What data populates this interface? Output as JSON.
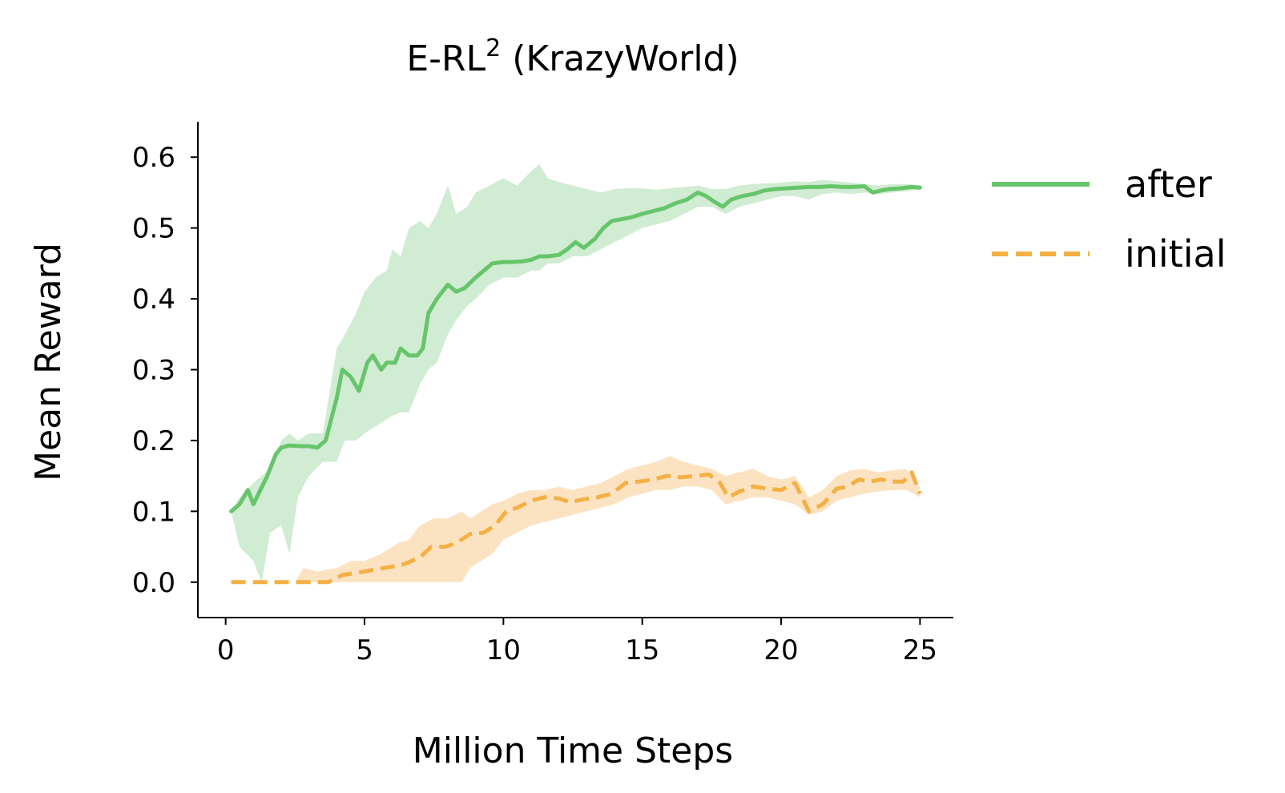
{
  "chart_data": {
    "type": "line",
    "title": "E-RL",
    "title_superscript": "2",
    "title_suffix": " (KrazyWorld)",
    "xlabel": "Million Time Steps",
    "ylabel": "Mean Reward",
    "xlim": [
      -1,
      26.2
    ],
    "ylim": [
      -0.05,
      0.65
    ],
    "xticks": [
      0,
      5,
      10,
      15,
      20,
      25
    ],
    "xtick_labels": [
      "0",
      "5",
      "10",
      "15",
      "20",
      "25"
    ],
    "yticks": [
      0.0,
      0.1,
      0.2,
      0.3,
      0.4,
      0.5,
      0.6
    ],
    "ytick_labels": [
      "0.0",
      "0.1",
      "0.2",
      "0.3",
      "0.4",
      "0.5",
      "0.6"
    ],
    "grid": false,
    "legend_position": "right",
    "series": [
      {
        "name": "after",
        "color": "#66c56a",
        "band_color": "#d0ecd2",
        "style": "solid",
        "points": [
          [
            0.2,
            0.1
          ],
          [
            0.5,
            0.11
          ],
          [
            0.8,
            0.13
          ],
          [
            1.0,
            0.11
          ],
          [
            1.5,
            0.15
          ],
          [
            1.8,
            0.18
          ],
          [
            2.0,
            0.19
          ],
          [
            2.3,
            0.193
          ],
          [
            2.7,
            0.192
          ],
          [
            3.0,
            0.192
          ],
          [
            3.3,
            0.19
          ],
          [
            3.6,
            0.2
          ],
          [
            4.0,
            0.26
          ],
          [
            4.2,
            0.3
          ],
          [
            4.5,
            0.29
          ],
          [
            4.8,
            0.27
          ],
          [
            5.1,
            0.31
          ],
          [
            5.3,
            0.32
          ],
          [
            5.6,
            0.3
          ],
          [
            5.8,
            0.31
          ],
          [
            6.1,
            0.31
          ],
          [
            6.3,
            0.33
          ],
          [
            6.6,
            0.32
          ],
          [
            6.9,
            0.32
          ],
          [
            7.1,
            0.33
          ],
          [
            7.3,
            0.38
          ],
          [
            7.6,
            0.4
          ],
          [
            7.8,
            0.41
          ],
          [
            8.0,
            0.42
          ],
          [
            8.3,
            0.41
          ],
          [
            8.6,
            0.415
          ],
          [
            9.0,
            0.43
          ],
          [
            9.3,
            0.44
          ],
          [
            9.6,
            0.45
          ],
          [
            10.0,
            0.452
          ],
          [
            10.3,
            0.452
          ],
          [
            10.7,
            0.453
          ],
          [
            11.0,
            0.455
          ],
          [
            11.3,
            0.46
          ],
          [
            11.6,
            0.46
          ],
          [
            12.0,
            0.462
          ],
          [
            12.3,
            0.47
          ],
          [
            12.6,
            0.48
          ],
          [
            12.9,
            0.472
          ],
          [
            13.3,
            0.485
          ],
          [
            13.6,
            0.5
          ],
          [
            13.9,
            0.51
          ],
          [
            14.2,
            0.512
          ],
          [
            14.6,
            0.515
          ],
          [
            15.0,
            0.52
          ],
          [
            15.4,
            0.524
          ],
          [
            15.8,
            0.528
          ],
          [
            16.2,
            0.535
          ],
          [
            16.6,
            0.54
          ],
          [
            17.0,
            0.55
          ],
          [
            17.3,
            0.545
          ],
          [
            17.6,
            0.537
          ],
          [
            17.9,
            0.53
          ],
          [
            18.2,
            0.54
          ],
          [
            18.6,
            0.545
          ],
          [
            19.0,
            0.548
          ],
          [
            19.4,
            0.553
          ],
          [
            19.8,
            0.555
          ],
          [
            20.2,
            0.556
          ],
          [
            20.6,
            0.557
          ],
          [
            21.0,
            0.558
          ],
          [
            21.4,
            0.558
          ],
          [
            21.8,
            0.559
          ],
          [
            22.2,
            0.558
          ],
          [
            22.6,
            0.558
          ],
          [
            23.0,
            0.559
          ],
          [
            23.3,
            0.55
          ],
          [
            23.6,
            0.553
          ],
          [
            23.9,
            0.555
          ],
          [
            24.3,
            0.556
          ],
          [
            24.7,
            0.558
          ],
          [
            25.0,
            0.557
          ]
        ],
        "band": [
          [
            0.2,
            0.1,
            0.1
          ],
          [
            0.5,
            0.05,
            0.12
          ],
          [
            1.0,
            0.03,
            0.14
          ],
          [
            1.3,
            0.0,
            0.15
          ],
          [
            1.6,
            0.07,
            0.16
          ],
          [
            2.0,
            0.08,
            0.2
          ],
          [
            2.3,
            0.04,
            0.21
          ],
          [
            2.6,
            0.12,
            0.2
          ],
          [
            3.0,
            0.15,
            0.21
          ],
          [
            3.5,
            0.17,
            0.21
          ],
          [
            4.0,
            0.17,
            0.33
          ],
          [
            4.3,
            0.2,
            0.35
          ],
          [
            4.7,
            0.2,
            0.38
          ],
          [
            5.0,
            0.21,
            0.41
          ],
          [
            5.4,
            0.22,
            0.43
          ],
          [
            5.8,
            0.23,
            0.44
          ],
          [
            6.0,
            0.235,
            0.47
          ],
          [
            6.3,
            0.24,
            0.46
          ],
          [
            6.6,
            0.24,
            0.5
          ],
          [
            7.0,
            0.28,
            0.51
          ],
          [
            7.3,
            0.3,
            0.5
          ],
          [
            7.6,
            0.31,
            0.52
          ],
          [
            8.0,
            0.35,
            0.56
          ],
          [
            8.3,
            0.37,
            0.52
          ],
          [
            8.7,
            0.39,
            0.53
          ],
          [
            9.0,
            0.4,
            0.55
          ],
          [
            9.5,
            0.42,
            0.56
          ],
          [
            10.0,
            0.43,
            0.57
          ],
          [
            10.5,
            0.43,
            0.56
          ],
          [
            11.0,
            0.44,
            0.58
          ],
          [
            11.3,
            0.44,
            0.59
          ],
          [
            11.6,
            0.45,
            0.57
          ],
          [
            12.0,
            0.45,
            0.565
          ],
          [
            12.5,
            0.46,
            0.56
          ],
          [
            13.0,
            0.46,
            0.555
          ],
          [
            13.5,
            0.47,
            0.55
          ],
          [
            14.0,
            0.48,
            0.555
          ],
          [
            14.5,
            0.49,
            0.556
          ],
          [
            15.0,
            0.5,
            0.556
          ],
          [
            15.5,
            0.505,
            0.554
          ],
          [
            16.0,
            0.51,
            0.556
          ],
          [
            16.5,
            0.52,
            0.558
          ],
          [
            17.0,
            0.53,
            0.56
          ],
          [
            17.5,
            0.53,
            0.555
          ],
          [
            18.0,
            0.52,
            0.555
          ],
          [
            18.5,
            0.53,
            0.56
          ],
          [
            19.0,
            0.535,
            0.562
          ],
          [
            19.5,
            0.54,
            0.563
          ],
          [
            20.0,
            0.545,
            0.564
          ],
          [
            20.5,
            0.545,
            0.566
          ],
          [
            21.0,
            0.54,
            0.565
          ],
          [
            21.5,
            0.548,
            0.568
          ],
          [
            22.0,
            0.55,
            0.566
          ],
          [
            22.5,
            0.548,
            0.564
          ],
          [
            23.0,
            0.55,
            0.562
          ],
          [
            23.5,
            0.548,
            0.56
          ],
          [
            24.0,
            0.55,
            0.562
          ],
          [
            24.5,
            0.552,
            0.562
          ],
          [
            25.0,
            0.554,
            0.56
          ]
        ]
      },
      {
        "name": "initial",
        "color": "#f3b044",
        "band_color": "#fbe3c2",
        "style": "dashed",
        "points": [
          [
            0.2,
            0.0
          ],
          [
            1.0,
            0.0
          ],
          [
            2.0,
            0.0
          ],
          [
            3.0,
            0.0
          ],
          [
            3.7,
            0.0
          ],
          [
            4.2,
            0.01
          ],
          [
            5.0,
            0.015
          ],
          [
            5.7,
            0.02
          ],
          [
            6.4,
            0.025
          ],
          [
            7.0,
            0.035
          ],
          [
            7.4,
            0.05
          ],
          [
            7.9,
            0.05
          ],
          [
            8.3,
            0.055
          ],
          [
            8.8,
            0.068
          ],
          [
            9.3,
            0.07
          ],
          [
            9.7,
            0.08
          ],
          [
            10.1,
            0.1
          ],
          [
            10.5,
            0.105
          ],
          [
            11.0,
            0.115
          ],
          [
            11.5,
            0.12
          ],
          [
            12.0,
            0.118
          ],
          [
            12.4,
            0.113
          ],
          [
            12.9,
            0.117
          ],
          [
            13.4,
            0.12
          ],
          [
            13.9,
            0.125
          ],
          [
            14.4,
            0.14
          ],
          [
            14.9,
            0.142
          ],
          [
            15.4,
            0.145
          ],
          [
            15.9,
            0.15
          ],
          [
            16.4,
            0.148
          ],
          [
            16.9,
            0.15
          ],
          [
            17.4,
            0.152
          ],
          [
            17.8,
            0.14
          ],
          [
            18.1,
            0.12
          ],
          [
            18.5,
            0.128
          ],
          [
            19.0,
            0.135
          ],
          [
            19.5,
            0.132
          ],
          [
            20.0,
            0.13
          ],
          [
            20.5,
            0.14
          ],
          [
            21.0,
            0.1
          ],
          [
            21.5,
            0.11
          ],
          [
            22.0,
            0.132
          ],
          [
            22.4,
            0.135
          ],
          [
            22.8,
            0.145
          ],
          [
            23.2,
            0.142
          ],
          [
            23.6,
            0.145
          ],
          [
            24.0,
            0.142
          ],
          [
            24.4,
            0.142
          ],
          [
            24.7,
            0.155
          ],
          [
            25.0,
            0.125
          ]
        ],
        "band": [
          [
            0.2,
            0.0,
            0.0
          ],
          [
            2.5,
            0.0,
            0.0
          ],
          [
            2.8,
            0.0,
            0.02
          ],
          [
            3.3,
            0.0,
            0.015
          ],
          [
            4.0,
            0.0,
            0.02
          ],
          [
            4.5,
            0.0,
            0.03
          ],
          [
            5.0,
            0.0,
            0.03
          ],
          [
            5.6,
            0.0,
            0.04
          ],
          [
            6.2,
            0.0,
            0.055
          ],
          [
            6.6,
            0.0,
            0.06
          ],
          [
            7.0,
            0.0,
            0.08
          ],
          [
            7.5,
            0.0,
            0.09
          ],
          [
            8.0,
            0.0,
            0.09
          ],
          [
            8.5,
            0.0,
            0.1
          ],
          [
            8.8,
            0.02,
            0.09
          ],
          [
            9.2,
            0.03,
            0.1
          ],
          [
            9.6,
            0.04,
            0.11
          ],
          [
            10.0,
            0.06,
            0.115
          ],
          [
            10.5,
            0.07,
            0.125
          ],
          [
            11.0,
            0.08,
            0.13
          ],
          [
            11.5,
            0.085,
            0.13
          ],
          [
            12.0,
            0.09,
            0.135
          ],
          [
            12.5,
            0.095,
            0.13
          ],
          [
            13.0,
            0.1,
            0.135
          ],
          [
            13.5,
            0.105,
            0.14
          ],
          [
            14.0,
            0.11,
            0.15
          ],
          [
            14.5,
            0.12,
            0.16
          ],
          [
            15.0,
            0.125,
            0.165
          ],
          [
            15.5,
            0.13,
            0.17
          ],
          [
            16.0,
            0.13,
            0.178
          ],
          [
            16.5,
            0.135,
            0.17
          ],
          [
            17.0,
            0.135,
            0.165
          ],
          [
            17.5,
            0.13,
            0.16
          ],
          [
            18.0,
            0.11,
            0.15
          ],
          [
            18.5,
            0.115,
            0.155
          ],
          [
            19.0,
            0.12,
            0.16
          ],
          [
            19.5,
            0.12,
            0.15
          ],
          [
            20.0,
            0.115,
            0.145
          ],
          [
            20.5,
            0.11,
            0.15
          ],
          [
            21.0,
            0.095,
            0.12
          ],
          [
            21.5,
            0.1,
            0.13
          ],
          [
            22.0,
            0.115,
            0.15
          ],
          [
            22.5,
            0.12,
            0.158
          ],
          [
            23.0,
            0.125,
            0.16
          ],
          [
            23.5,
            0.128,
            0.155
          ],
          [
            24.0,
            0.13,
            0.158
          ],
          [
            24.5,
            0.13,
            0.16
          ],
          [
            25.0,
            0.12,
            0.135
          ]
        ]
      }
    ]
  }
}
